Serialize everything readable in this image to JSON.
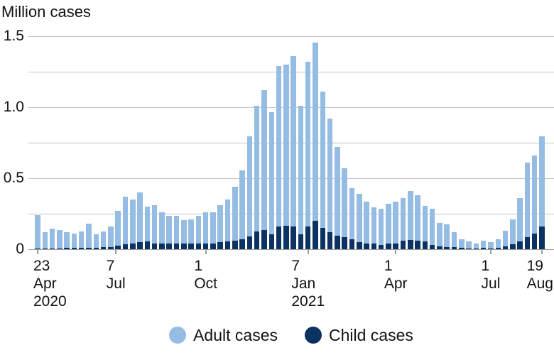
{
  "legend": [
    {
      "label": "Adult cases",
      "color": "#95bce3"
    },
    {
      "label": "Child cases",
      "color": "#0c3262"
    }
  ],
  "colors": {
    "adult": "#95bce3",
    "child": "#0c3262",
    "gridline": "#c4c4c4",
    "baseline": "#9e9e9e",
    "text": "#121212"
  },
  "chart_data": {
    "type": "bar",
    "stacked": true,
    "title": "Million cases",
    "ylabel": "Million cases",
    "ylim": [
      0,
      1.5
    ],
    "y_gridline_step": 0.25,
    "yticks": [
      {
        "value": 0,
        "label": "0"
      },
      {
        "value": 0.5,
        "label": "0.5"
      },
      {
        "value": 1.0,
        "label": "1.0"
      },
      {
        "value": 1.5,
        "label": "1.5"
      }
    ],
    "categories": [
      "2020-04-23",
      "2020-04-30",
      "2020-05-07",
      "2020-05-14",
      "2020-05-21",
      "2020-05-28",
      "2020-06-04",
      "2020-06-11",
      "2020-06-18",
      "2020-06-25",
      "2020-07-02",
      "2020-07-09",
      "2020-07-16",
      "2020-07-23",
      "2020-07-30",
      "2020-08-06",
      "2020-08-13",
      "2020-08-20",
      "2020-08-27",
      "2020-09-03",
      "2020-09-10",
      "2020-09-17",
      "2020-09-24",
      "2020-10-01",
      "2020-10-08",
      "2020-10-15",
      "2020-10-22",
      "2020-10-29",
      "2020-11-05",
      "2020-11-12",
      "2020-11-19",
      "2020-11-26",
      "2020-12-03",
      "2020-12-10",
      "2020-12-17",
      "2020-12-24",
      "2020-12-31",
      "2021-01-07",
      "2021-01-14",
      "2021-01-21",
      "2021-01-28",
      "2021-02-04",
      "2021-02-11",
      "2021-02-18",
      "2021-02-25",
      "2021-03-04",
      "2021-03-11",
      "2021-03-18",
      "2021-03-25",
      "2021-04-01",
      "2021-04-08",
      "2021-04-15",
      "2021-04-22",
      "2021-04-29",
      "2021-05-06",
      "2021-05-13",
      "2021-05-20",
      "2021-05-27",
      "2021-06-03",
      "2021-06-10",
      "2021-06-17",
      "2021-06-24",
      "2021-07-01",
      "2021-07-08",
      "2021-07-15",
      "2021-07-22",
      "2021-07-29",
      "2021-08-05",
      "2021-08-12",
      "2021-08-19"
    ],
    "series": [
      {
        "name": "Child cases",
        "color": "#0c3262",
        "values": [
          0.005,
          0.005,
          0.007,
          0.007,
          0.008,
          0.008,
          0.01,
          0.012,
          0.012,
          0.013,
          0.017,
          0.025,
          0.033,
          0.042,
          0.05,
          0.055,
          0.042,
          0.038,
          0.038,
          0.042,
          0.038,
          0.038,
          0.038,
          0.042,
          0.042,
          0.05,
          0.055,
          0.06,
          0.07,
          0.09,
          0.125,
          0.135,
          0.105,
          0.16,
          0.165,
          0.16,
          0.105,
          0.16,
          0.2,
          0.15,
          0.12,
          0.095,
          0.085,
          0.072,
          0.05,
          0.042,
          0.042,
          0.03,
          0.038,
          0.042,
          0.058,
          0.065,
          0.062,
          0.057,
          0.03,
          0.02,
          0.017,
          0.013,
          0.008,
          0.007,
          0.005,
          0.008,
          0.007,
          0.01,
          0.02,
          0.033,
          0.055,
          0.083,
          0.108,
          0.162
        ]
      },
      {
        "name": "Adult cases",
        "color": "#95bce3",
        "values": [
          0.235,
          0.115,
          0.138,
          0.128,
          0.112,
          0.102,
          0.115,
          0.168,
          0.093,
          0.112,
          0.143,
          0.245,
          0.337,
          0.308,
          0.35,
          0.245,
          0.268,
          0.222,
          0.197,
          0.193,
          0.167,
          0.172,
          0.197,
          0.218,
          0.218,
          0.26,
          0.295,
          0.38,
          0.485,
          0.705,
          0.885,
          0.985,
          0.86,
          1.13,
          1.135,
          1.2,
          0.905,
          1.16,
          1.255,
          0.96,
          0.8,
          0.625,
          0.485,
          0.358,
          0.34,
          0.293,
          0.253,
          0.255,
          0.282,
          0.293,
          0.302,
          0.345,
          0.316,
          0.246,
          0.253,
          0.167,
          0.158,
          0.107,
          0.062,
          0.048,
          0.037,
          0.054,
          0.043,
          0.06,
          0.108,
          0.179,
          0.307,
          0.529,
          0.554,
          0.633
        ]
      }
    ],
    "xticks": [
      {
        "week": 0,
        "lines": [
          "23",
          "Apr",
          "2020"
        ]
      },
      {
        "week": 10.71,
        "lines": [
          "7",
          "Jul"
        ]
      },
      {
        "week": 23,
        "lines": [
          "1",
          "Oct"
        ]
      },
      {
        "week": 37,
        "lines": [
          "7",
          "Jan",
          "2021"
        ]
      },
      {
        "week": 49,
        "lines": [
          "1",
          "Apr"
        ]
      },
      {
        "week": 62,
        "lines": [
          "1",
          "Jul"
        ]
      },
      {
        "week": 69,
        "lines": [
          "19",
          "Aug"
        ]
      }
    ],
    "legend_position": "bottom",
    "grid": true
  }
}
